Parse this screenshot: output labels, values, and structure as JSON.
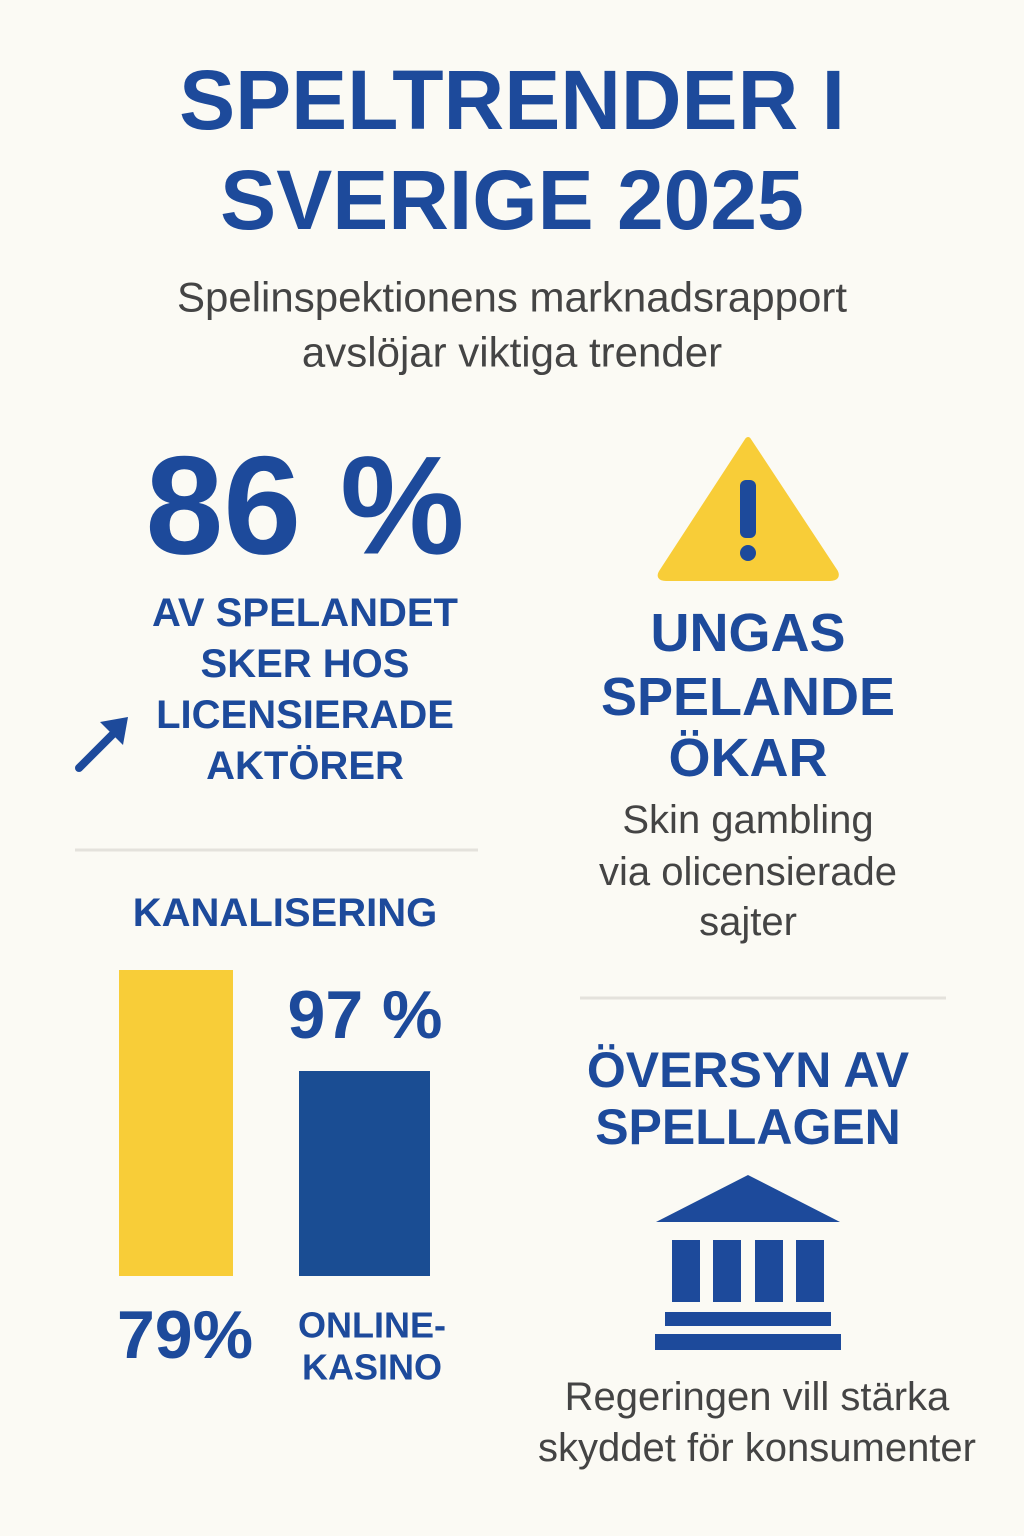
{
  "header": {
    "title": [
      "SPELTRENDER I",
      "SVERIGE 2025"
    ],
    "subtitle": [
      "Spelinspektionens marknadsrapport",
      "avslöjar viktiga trender"
    ]
  },
  "licensed": {
    "stat": "86 %",
    "text": [
      "AV SPELANDET",
      "SKER HOS",
      "LICENSIERADE",
      "AKTÖRER"
    ]
  },
  "youth": {
    "title": [
      "UNGAS",
      "SPELANDE",
      "ÖKAR"
    ],
    "text": [
      "Skin gambling",
      "via olicensierade",
      "sajter"
    ]
  },
  "channelization": {
    "title": "KANALISERING",
    "online_casino_share": "97 %",
    "total_share": "79%",
    "online_casino_label": [
      "ONLINE-",
      "KASINO"
    ]
  },
  "review": {
    "title": [
      "ÖVERSYN AV",
      "SPELLAGEN"
    ],
    "text": [
      "Regeringen vill stärka",
      "skyddet för konsumenter"
    ]
  }
}
